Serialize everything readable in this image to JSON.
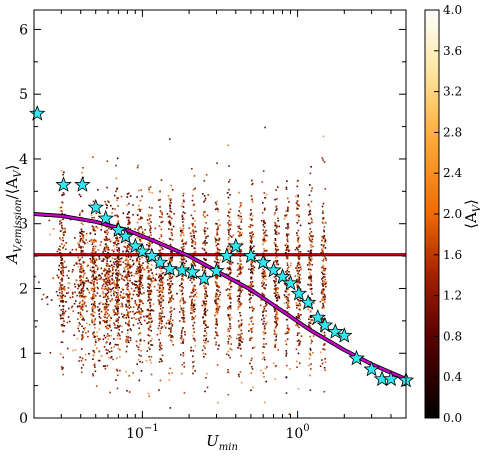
{
  "chart_data": {
    "type": "scatter",
    "x_scale": "log",
    "xlim": [
      0.02,
      5.0
    ],
    "ylim": [
      0,
      6.3
    ],
    "x_ticks": [
      {
        "value": 0.1,
        "base": "10",
        "exp": "−1"
      },
      {
        "value": 1,
        "base": "10",
        "exp": "0"
      }
    ],
    "y_ticks": [
      {
        "value": 0,
        "label": "0"
      },
      {
        "value": 1,
        "label": "1"
      },
      {
        "value": 2,
        "label": "2"
      },
      {
        "value": 3,
        "label": "3"
      },
      {
        "value": 4,
        "label": "4"
      },
      {
        "value": 5,
        "label": "5"
      },
      {
        "value": 6,
        "label": "6"
      }
    ],
    "xlabel": {
      "base": "U",
      "sub": "min"
    },
    "ylabel": {
      "main": "A",
      "sub": "V,emission",
      "tail": "/⟨A",
      "sub2": "V",
      "close": "⟩"
    },
    "colorbar": {
      "label": {
        "open": "⟨A",
        "sub": "V",
        "close": "⟩"
      },
      "range": [
        0.0,
        4.0
      ],
      "ticks": [
        "0.0",
        "0.4",
        "0.8",
        "1.2",
        "1.6",
        "2.0",
        "2.4",
        "2.8",
        "3.2",
        "3.6",
        "4.0"
      ],
      "colormap": "afmhot"
    },
    "hline": {
      "y": 2.52,
      "color": "#cc0000"
    },
    "fit_curve": {
      "color": "#cc00cc",
      "points": [
        [
          0.02,
          3.15
        ],
        [
          0.03,
          3.12
        ],
        [
          0.05,
          3.03
        ],
        [
          0.08,
          2.9
        ],
        [
          0.12,
          2.73
        ],
        [
          0.2,
          2.5
        ],
        [
          0.3,
          2.27
        ],
        [
          0.5,
          1.98
        ],
        [
          0.8,
          1.65
        ],
        [
          1.2,
          1.36
        ],
        [
          2.0,
          1.05
        ],
        [
          3.0,
          0.83
        ],
        [
          5.0,
          0.6
        ]
      ]
    },
    "series": [
      {
        "marker": "star",
        "color": "#33e6f0",
        "points": [
          [
            0.021,
            4.7
          ],
          [
            0.031,
            3.6
          ],
          [
            0.041,
            3.6
          ],
          [
            0.05,
            3.25
          ],
          [
            0.058,
            3.08
          ],
          [
            0.07,
            2.9
          ],
          [
            0.078,
            2.8
          ],
          [
            0.09,
            2.65
          ],
          [
            0.1,
            2.57
          ],
          [
            0.115,
            2.5
          ],
          [
            0.13,
            2.4
          ],
          [
            0.15,
            2.3
          ],
          [
            0.18,
            2.28
          ],
          [
            0.21,
            2.25
          ],
          [
            0.25,
            2.15
          ],
          [
            0.3,
            2.27
          ],
          [
            0.35,
            2.5
          ],
          [
            0.4,
            2.65
          ],
          [
            0.5,
            2.5
          ],
          [
            0.6,
            2.4
          ],
          [
            0.7,
            2.28
          ],
          [
            0.8,
            2.18
          ],
          [
            0.9,
            2.08
          ],
          [
            1.02,
            1.92
          ],
          [
            1.17,
            1.78
          ],
          [
            1.35,
            1.55
          ],
          [
            1.5,
            1.43
          ],
          [
            1.75,
            1.33
          ],
          [
            2.0,
            1.27
          ],
          [
            2.4,
            0.92
          ],
          [
            3.0,
            0.75
          ],
          [
            3.5,
            0.6
          ],
          [
            4.0,
            0.6
          ],
          [
            5.0,
            0.58
          ]
        ]
      }
    ]
  }
}
